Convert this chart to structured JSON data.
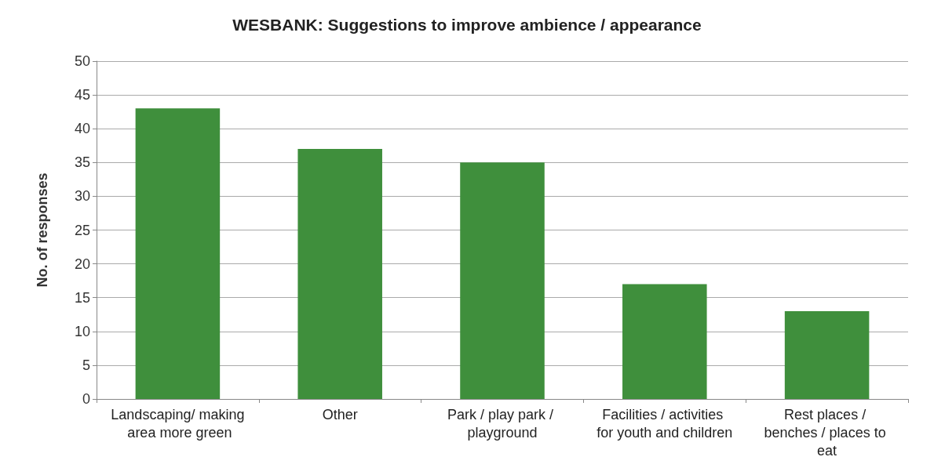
{
  "chart_data": {
    "type": "bar",
    "title": "WESBANK: Suggestions to improve ambience / appearance",
    "ylabel": "No. of responses",
    "categories": [
      "Landscaping/ making area more green",
      "Other",
      "Park / play park / playground",
      "Facilities / activities for youth and children",
      "Rest places / benches / places to eat"
    ],
    "values": [
      43,
      37,
      35,
      17,
      13
    ],
    "color": "#3f8f3c",
    "ylim": [
      0,
      50
    ],
    "yticks": [
      0,
      5,
      10,
      15,
      20,
      25,
      30,
      35,
      40,
      45,
      50
    ],
    "grid": "y"
  }
}
